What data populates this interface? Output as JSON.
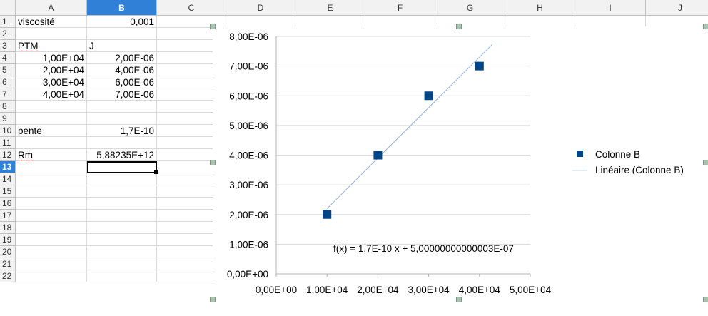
{
  "spreadsheet": {
    "columns": [
      "A",
      "B",
      "C",
      "D",
      "E",
      "F",
      "G",
      "H",
      "I",
      "J"
    ],
    "selected_column": "B",
    "rows": [
      "1",
      "2",
      "3",
      "4",
      "5",
      "6",
      "7",
      "8",
      "9",
      "10",
      "11",
      "12",
      "13",
      "14",
      "15",
      "16",
      "17",
      "18",
      "19",
      "20",
      "21",
      "22"
    ],
    "selected_row": "13",
    "cells": {
      "A1": "viscosité",
      "B1": "0,001",
      "A3": "PTM",
      "B3": "J",
      "A4": "1,00E+04",
      "B4": "2,00E-06",
      "A5": "2,00E+04",
      "B5": "4,00E-06",
      "A6": "3,00E+04",
      "B6": "6,00E-06",
      "A7": "4,00E+04",
      "B7": "7,00E-06",
      "A10": "pente",
      "B10": "1,7E-10",
      "A12": "Rm",
      "B12": "5,88235E+12"
    },
    "active_cell": "B13"
  },
  "chart_data": {
    "type": "scatter",
    "x": [
      10000,
      20000,
      30000,
      40000
    ],
    "y": [
      2e-06,
      4e-06,
      6e-06,
      7e-06
    ],
    "xlim": [
      0,
      50000
    ],
    "ylim": [
      0,
      8e-06
    ],
    "x_ticks": [
      "0,00E+00",
      "1,00E+04",
      "2,00E+04",
      "3,00E+04",
      "4,00E+04",
      "5,00E+04"
    ],
    "y_ticks": [
      "0,00E+00",
      "1,00E-06",
      "2,00E-06",
      "3,00E-06",
      "4,00E-06",
      "5,00E-06",
      "6,00E-06",
      "7,00E-06",
      "8,00E-06"
    ],
    "series": [
      {
        "name": "Colonne B",
        "color": "#004586",
        "marker": "square"
      }
    ],
    "trendline": {
      "name": "Linéaire (Colonne B)",
      "slope": 1.7e-10,
      "intercept": 5e-07,
      "color": "#8fb4d9",
      "equation": "f(x) = 1,7E-10 x + 5,00000000000003E-07"
    },
    "grid": true,
    "legend_position": "right"
  }
}
